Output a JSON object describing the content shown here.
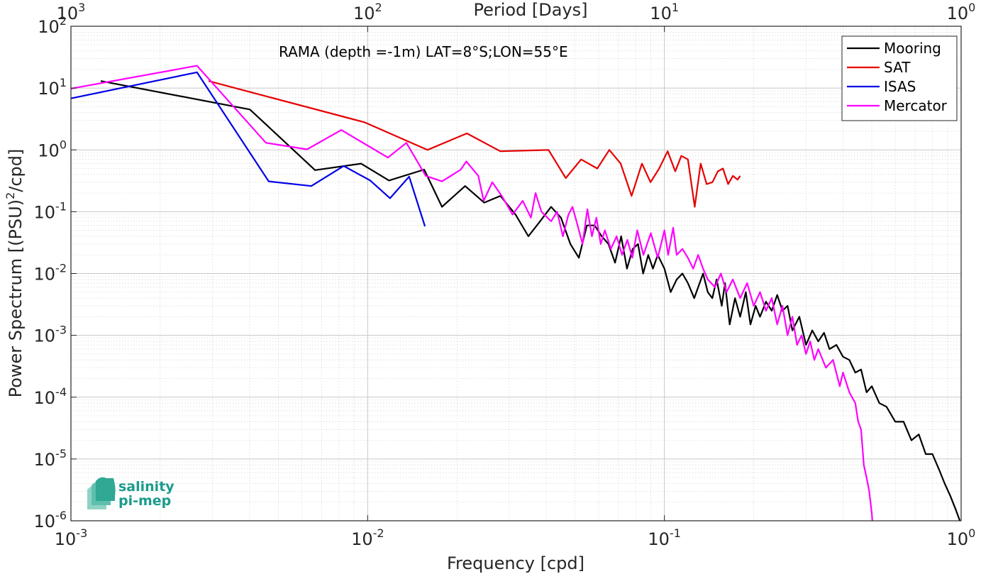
{
  "chart_data": {
    "type": "line",
    "title": "",
    "annotation": "RAMA (depth =-1m) LAT=8°S;LON=55°E",
    "xlabel": "Frequency [cpd]",
    "ylabel": "Power Spectrum [(PSU)",
    "ylabel_sup": "2",
    "ylabel_end": "/cpd]",
    "top_xlabel": "Period [Days]",
    "xscale": "log",
    "yscale": "log",
    "xlim": [
      0.001,
      1
    ],
    "ylim": [
      1e-06,
      100
    ],
    "grid": true,
    "minor_grid": true,
    "legend_position": "top-right",
    "x_ticks": [
      {
        "value": 0.001,
        "base": "10",
        "exp": "-3"
      },
      {
        "value": 0.01,
        "base": "10",
        "exp": "-2"
      },
      {
        "value": 0.1,
        "base": "10",
        "exp": "-1"
      },
      {
        "value": 1,
        "base": "10",
        "exp": "0"
      }
    ],
    "top_ticks": [
      {
        "value": 0.001,
        "base": "10",
        "exp": "3"
      },
      {
        "value": 0.01,
        "base": "10",
        "exp": "2"
      },
      {
        "value": 0.1,
        "base": "10",
        "exp": "1"
      },
      {
        "value": 1,
        "base": "10",
        "exp": "0"
      }
    ],
    "y_ticks": [
      {
        "value": 100,
        "base": "10",
        "exp": "2"
      },
      {
        "value": 10,
        "base": "10",
        "exp": "1"
      },
      {
        "value": 1,
        "base": "10",
        "exp": "0"
      },
      {
        "value": 0.1,
        "base": "10",
        "exp": "-1"
      },
      {
        "value": 0.01,
        "base": "10",
        "exp": "-2"
      },
      {
        "value": 0.001,
        "base": "10",
        "exp": "-3"
      },
      {
        "value": 0.0001,
        "base": "10",
        "exp": "-4"
      },
      {
        "value": 1e-05,
        "base": "10",
        "exp": "-5"
      },
      {
        "value": 1e-06,
        "base": "10",
        "exp": "-6"
      }
    ],
    "series": [
      {
        "name": "Mooring",
        "color": "#000000",
        "points": [
          [
            0.00126,
            13.0
          ],
          [
            0.00401,
            4.5
          ],
          [
            0.00665,
            0.47
          ],
          [
            0.0095,
            0.6
          ],
          [
            0.0118,
            0.32
          ],
          [
            0.0155,
            0.48
          ],
          [
            0.0178,
            0.12
          ],
          [
            0.0213,
            0.26
          ],
          [
            0.0247,
            0.14
          ],
          [
            0.028,
            0.18
          ],
          [
            0.0315,
            0.09
          ],
          [
            0.0348,
            0.04
          ],
          [
            0.0381,
            0.07
          ],
          [
            0.0415,
            0.12
          ],
          [
            0.0448,
            0.08
          ],
          [
            0.0482,
            0.03
          ],
          [
            0.0515,
            0.018
          ],
          [
            0.0548,
            0.06
          ],
          [
            0.0582,
            0.06
          ],
          [
            0.0615,
            0.04
          ],
          [
            0.0648,
            0.03
          ],
          [
            0.0682,
            0.015
          ],
          [
            0.0715,
            0.04
          ],
          [
            0.0748,
            0.012
          ],
          [
            0.0782,
            0.025
          ],
          [
            0.0815,
            0.03
          ],
          [
            0.0848,
            0.01
          ],
          [
            0.0882,
            0.02
          ],
          [
            0.0915,
            0.012
          ],
          [
            0.095,
            0.02
          ],
          [
            0.1,
            0.012
          ],
          [
            0.105,
            0.005
          ],
          [
            0.11,
            0.008
          ],
          [
            0.115,
            0.01
          ],
          [
            0.12,
            0.007
          ],
          [
            0.126,
            0.004
          ],
          [
            0.13,
            0.006
          ],
          [
            0.135,
            0.01
          ],
          [
            0.14,
            0.005
          ],
          [
            0.145,
            0.004
          ],
          [
            0.15,
            0.008
          ],
          [
            0.156,
            0.003
          ],
          [
            0.16,
            0.007
          ],
          [
            0.166,
            0.0015
          ],
          [
            0.173,
            0.004
          ],
          [
            0.18,
            0.002
          ],
          [
            0.188,
            0.005
          ],
          [
            0.195,
            0.0015
          ],
          [
            0.203,
            0.003
          ],
          [
            0.21,
            0.002
          ],
          [
            0.22,
            0.0035
          ],
          [
            0.23,
            0.0025
          ],
          [
            0.24,
            0.0045
          ],
          [
            0.25,
            0.0025
          ],
          [
            0.26,
            0.003
          ],
          [
            0.27,
            0.0012
          ],
          [
            0.285,
            0.002
          ],
          [
            0.3,
            0.0007
          ],
          [
            0.315,
            0.0012
          ],
          [
            0.33,
            0.0008
          ],
          [
            0.345,
            0.0011
          ],
          [
            0.36,
            0.0006
          ],
          [
            0.38,
            0.0007
          ],
          [
            0.4,
            0.00045
          ],
          [
            0.42,
            0.0004
          ],
          [
            0.44,
            0.00025
          ],
          [
            0.46,
            0.00028
          ],
          [
            0.48,
            0.00012
          ],
          [
            0.5,
            0.00015
          ],
          [
            0.53,
            8e-05
          ],
          [
            0.56,
            7e-05
          ],
          [
            0.6,
            4e-05
          ],
          [
            0.64,
            4e-05
          ],
          [
            0.68,
            2e-05
          ],
          [
            0.72,
            2.5e-05
          ],
          [
            0.76,
            1.2e-05
          ],
          [
            0.8,
            1.2e-05
          ],
          [
            0.84,
            7e-06
          ],
          [
            0.88,
            4e-06
          ],
          [
            0.92,
            2.5e-06
          ],
          [
            0.96,
            1.5e-06
          ],
          [
            0.99,
            1e-06
          ]
        ]
      },
      {
        "name": "SAT",
        "color": "#e50000",
        "points": [
          [
            0.00291,
            13.0
          ],
          [
            0.00975,
            2.8
          ],
          [
            0.0159,
            1.0
          ],
          [
            0.0216,
            1.85
          ],
          [
            0.028,
            0.95
          ],
          [
            0.0407,
            1.0
          ],
          [
            0.0465,
            0.35
          ],
          [
            0.0524,
            0.7
          ],
          [
            0.0594,
            0.5
          ],
          [
            0.0652,
            1.0
          ],
          [
            0.0712,
            0.6
          ],
          [
            0.0775,
            0.18
          ],
          [
            0.084,
            0.6
          ],
          [
            0.0898,
            0.3
          ],
          [
            0.096,
            0.5
          ],
          [
            0.1025,
            0.95
          ],
          [
            0.1088,
            0.45
          ],
          [
            0.114,
            0.8
          ],
          [
            0.12,
            0.7
          ],
          [
            0.1265,
            0.12
          ],
          [
            0.1325,
            0.6
          ],
          [
            0.1388,
            0.28
          ],
          [
            0.1452,
            0.3
          ],
          [
            0.1514,
            0.45
          ],
          [
            0.1575,
            0.5
          ],
          [
            0.164,
            0.28
          ],
          [
            0.1701,
            0.38
          ],
          [
            0.1764,
            0.33
          ],
          [
            0.18,
            0.38
          ]
        ]
      },
      {
        "name": "ISAS",
        "color": "#0000e6",
        "points": [
          [
            0.001,
            6.8
          ],
          [
            0.00266,
            18.0
          ],
          [
            0.00464,
            0.31
          ],
          [
            0.00646,
            0.26
          ],
          [
            0.0083,
            0.55
          ],
          [
            0.0102,
            0.32
          ],
          [
            0.0119,
            0.165
          ],
          [
            0.0138,
            0.37
          ],
          [
            0.0156,
            0.058
          ]
        ]
      },
      {
        "name": "Mercator",
        "color": "#ff00ff",
        "points": [
          [
            0.001,
            9.8
          ],
          [
            0.00266,
            23.0
          ],
          [
            0.00454,
            1.3
          ],
          [
            0.00625,
            1.02
          ],
          [
            0.00815,
            2.1
          ],
          [
            0.0117,
            0.75
          ],
          [
            0.0135,
            1.3
          ],
          [
            0.0157,
            0.38
          ],
          [
            0.0178,
            0.31
          ],
          [
            0.0206,
            0.48
          ],
          [
            0.0215,
            0.65
          ],
          [
            0.0236,
            0.38
          ],
          [
            0.0246,
            0.15
          ],
          [
            0.0263,
            0.3
          ],
          [
            0.0283,
            0.18
          ],
          [
            0.0308,
            0.09
          ],
          [
            0.0333,
            0.15
          ],
          [
            0.0355,
            0.08
          ],
          [
            0.0368,
            0.2
          ],
          [
            0.0385,
            0.1
          ],
          [
            0.0415,
            0.07
          ],
          [
            0.0435,
            0.1
          ],
          [
            0.0455,
            0.04
          ],
          [
            0.0475,
            0.09
          ],
          [
            0.049,
            0.12
          ],
          [
            0.051,
            0.06
          ],
          [
            0.053,
            0.03
          ],
          [
            0.055,
            0.11
          ],
          [
            0.057,
            0.04
          ],
          [
            0.059,
            0.08
          ],
          [
            0.061,
            0.03
          ],
          [
            0.063,
            0.05
          ],
          [
            0.066,
            0.025
          ],
          [
            0.069,
            0.04
          ],
          [
            0.072,
            0.02
          ],
          [
            0.075,
            0.035
          ],
          [
            0.078,
            0.018
          ],
          [
            0.081,
            0.05
          ],
          [
            0.085,
            0.02
          ],
          [
            0.09,
            0.045
          ],
          [
            0.095,
            0.018
          ],
          [
            0.1,
            0.05
          ],
          [
            0.103,
            0.02
          ],
          [
            0.107,
            0.055
          ],
          [
            0.11,
            0.02
          ],
          [
            0.115,
            0.025
          ],
          [
            0.12,
            0.018
          ],
          [
            0.125,
            0.012
          ],
          [
            0.13,
            0.02
          ],
          [
            0.135,
            0.012
          ],
          [
            0.14,
            0.008
          ],
          [
            0.148,
            0.006
          ],
          [
            0.155,
            0.01
          ],
          [
            0.162,
            0.005
          ],
          [
            0.17,
            0.008
          ],
          [
            0.18,
            0.004
          ],
          [
            0.19,
            0.007
          ],
          [
            0.2,
            0.003
          ],
          [
            0.21,
            0.005
          ],
          [
            0.22,
            0.0025
          ],
          [
            0.23,
            0.004
          ],
          [
            0.24,
            0.0015
          ],
          [
            0.25,
            0.003
          ],
          [
            0.26,
            0.001
          ],
          [
            0.27,
            0.002
          ],
          [
            0.28,
            0.0007
          ],
          [
            0.29,
            0.001
          ],
          [
            0.3,
            0.0005
          ],
          [
            0.31,
            0.0008
          ],
          [
            0.32,
            0.0004
          ],
          [
            0.33,
            0.0006
          ],
          [
            0.35,
            0.0003
          ],
          [
            0.37,
            0.0004
          ],
          [
            0.39,
            0.00015
          ],
          [
            0.4,
            0.00025
          ],
          [
            0.42,
            0.00012
          ],
          [
            0.44,
            8e-05
          ],
          [
            0.45,
            4e-05
          ],
          [
            0.46,
            3e-05
          ],
          [
            0.47,
            8e-06
          ],
          [
            0.48,
            5e-06
          ],
          [
            0.49,
            3e-06
          ],
          [
            0.5,
            1.3e-06
          ],
          [
            0.502,
            1e-06
          ]
        ]
      }
    ]
  },
  "logo": {
    "line1": "salinity",
    "line2": "pi-mep",
    "icon": "salinity-logo-icon"
  }
}
